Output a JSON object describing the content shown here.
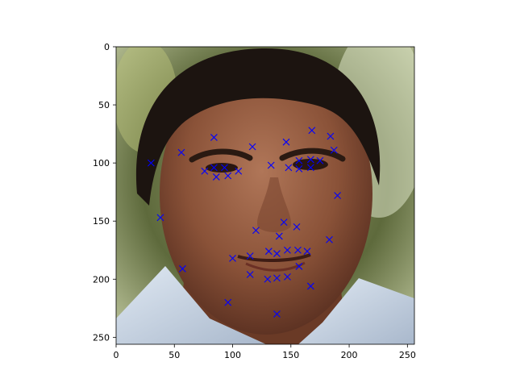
{
  "chart_data": {
    "type": "scatter",
    "title": "",
    "xlabel": "",
    "ylabel": "",
    "xlim": [
      0,
      256
    ],
    "ylim": [
      256,
      0
    ],
    "y_inverted": true,
    "background": "photo of a man's face",
    "grid": false,
    "legend": "none",
    "xticks": [
      "0",
      "50",
      "100",
      "150",
      "200",
      "250"
    ],
    "yticks": [
      "0",
      "50",
      "100",
      "150",
      "200",
      "250"
    ],
    "series": [
      {
        "marker": "x",
        "color": "#0000ff",
        "points": [
          [
            30,
            100
          ],
          [
            38,
            147
          ],
          [
            57,
            191
          ],
          [
            96,
            220
          ],
          [
            138,
            230
          ],
          [
            167,
            206
          ],
          [
            183,
            166
          ],
          [
            190,
            128
          ],
          [
            187,
            89
          ],
          [
            184,
            77
          ],
          [
            168,
            72
          ],
          [
            146,
            82
          ],
          [
            117,
            86
          ],
          [
            84,
            78
          ],
          [
            56,
            91
          ],
          [
            76,
            107
          ],
          [
            86,
            112
          ],
          [
            96,
            111
          ],
          [
            105,
            107
          ],
          [
            93,
            104
          ],
          [
            84,
            104
          ],
          [
            133,
            102
          ],
          [
            148,
            104
          ],
          [
            157,
            105
          ],
          [
            167,
            104
          ],
          [
            175,
            98
          ],
          [
            167,
            97
          ],
          [
            157,
            98
          ],
          [
            120,
            158
          ],
          [
            140,
            163
          ],
          [
            155,
            155
          ],
          [
            144,
            151
          ],
          [
            100,
            182
          ],
          [
            115,
            180
          ],
          [
            131,
            176
          ],
          [
            138,
            178
          ],
          [
            147,
            175
          ],
          [
            156,
            175
          ],
          [
            164,
            176
          ],
          [
            157,
            189
          ],
          [
            147,
            198
          ],
          [
            138,
            199
          ],
          [
            130,
            200
          ],
          [
            115,
            196
          ]
        ]
      }
    ]
  }
}
